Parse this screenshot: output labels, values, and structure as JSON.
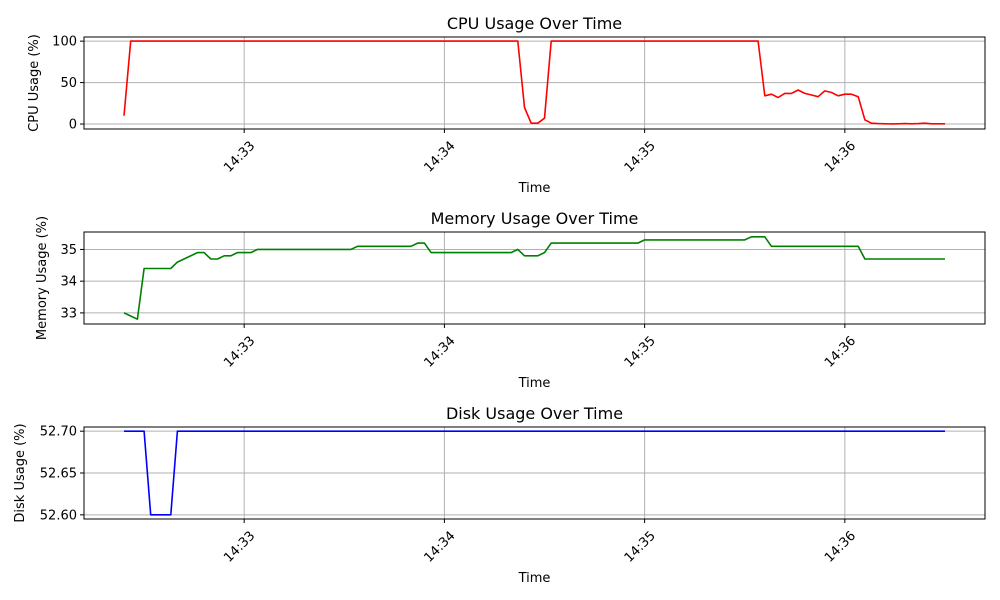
{
  "chart_data": [
    {
      "type": "line",
      "title": "CPU Usage Over Time",
      "xlabel": "Time",
      "ylabel": "CPU Usage (%)",
      "color": "#ff0000",
      "ylim": [
        -6,
        105
      ],
      "yticks": [
        0,
        50,
        100
      ],
      "ytick_labels": [
        "0",
        "50",
        "100"
      ],
      "xlim": [
        "14:32:12",
        "14:36:42"
      ],
      "xticks": [
        "14:33:00",
        "14:34:00",
        "14:35:00",
        "14:36:00"
      ],
      "xtick_labels": [
        "14:33",
        "14:34",
        "14:35",
        "14:36"
      ],
      "grid": true,
      "series": [
        {
          "x": [
            "14:32:24",
            "14:32:26",
            "14:34:22",
            "14:34:24",
            "14:34:26",
            "14:34:28",
            "14:34:30",
            "14:34:32",
            "14:35:34",
            "14:35:36",
            "14:35:38",
            "14:35:40",
            "14:35:42",
            "14:35:44",
            "14:35:46",
            "14:35:48",
            "14:35:50",
            "14:35:52",
            "14:35:54",
            "14:35:56",
            "14:35:58",
            "14:36:00",
            "14:36:02",
            "14:36:04",
            "14:36:06",
            "14:36:08",
            "14:36:10",
            "14:36:12",
            "14:36:14",
            "14:36:16",
            "14:36:18",
            "14:36:20",
            "14:36:22",
            "14:36:24",
            "14:36:26",
            "14:36:28",
            "14:36:30"
          ],
          "y": [
            10,
            100,
            100,
            20,
            1,
            1,
            7,
            100,
            100,
            34,
            36,
            32,
            37,
            37,
            41,
            37,
            35,
            33,
            40,
            38,
            34,
            36,
            36,
            33,
            5,
            1,
            0.5,
            0.3,
            0.2,
            0.3,
            0.5,
            0.3,
            0.5,
            1,
            0.3,
            0.3,
            0.3
          ]
        }
      ]
    },
    {
      "type": "line",
      "title": "Memory Usage Over Time",
      "xlabel": "Time",
      "ylabel": "Memory Usage (%)",
      "color": "#008000",
      "ylim": [
        32.65,
        35.55
      ],
      "yticks": [
        33,
        34,
        35
      ],
      "ytick_labels": [
        "33",
        "34",
        "35"
      ],
      "xlim": [
        "14:32:12",
        "14:36:42"
      ],
      "xticks": [
        "14:33:00",
        "14:34:00",
        "14:35:00",
        "14:36:00"
      ],
      "xtick_labels": [
        "14:33",
        "14:34",
        "14:35",
        "14:36"
      ],
      "grid": true,
      "series": [
        {
          "x": [
            "14:32:24",
            "14:32:28",
            "14:32:30",
            "14:32:38",
            "14:32:40",
            "14:32:46",
            "14:32:48",
            "14:32:50",
            "14:32:52",
            "14:32:54",
            "14:32:56",
            "14:32:58",
            "14:33:02",
            "14:33:04",
            "14:33:32",
            "14:33:34",
            "14:33:50",
            "14:33:52",
            "14:33:54",
            "14:33:56",
            "14:34:20",
            "14:34:22",
            "14:34:24",
            "14:34:28",
            "14:34:30",
            "14:34:32",
            "14:34:58",
            "14:35:00",
            "14:35:30",
            "14:35:32",
            "14:35:36",
            "14:35:38",
            "14:36:04",
            "14:36:06",
            "14:36:30"
          ],
          "y": [
            33.0,
            32.8,
            34.4,
            34.4,
            34.6,
            34.9,
            34.9,
            34.7,
            34.7,
            34.8,
            34.8,
            34.9,
            34.9,
            35.0,
            35.0,
            35.1,
            35.1,
            35.2,
            35.2,
            34.9,
            34.9,
            35.0,
            34.8,
            34.8,
            34.9,
            35.2,
            35.2,
            35.3,
            35.3,
            35.4,
            35.4,
            35.1,
            35.1,
            34.7,
            34.7
          ]
        }
      ]
    },
    {
      "type": "line",
      "title": "Disk Usage Over Time",
      "xlabel": "Time",
      "ylabel": "Disk Usage (%)",
      "color": "#0000ff",
      "ylim": [
        52.595,
        52.705
      ],
      "yticks": [
        52.6,
        52.65,
        52.7
      ],
      "ytick_labels": [
        "52.60",
        "52.65",
        "52.70"
      ],
      "xlim": [
        "14:32:12",
        "14:36:42"
      ],
      "xticks": [
        "14:33:00",
        "14:34:00",
        "14:35:00",
        "14:36:00"
      ],
      "xtick_labels": [
        "14:33",
        "14:34",
        "14:35",
        "14:36"
      ],
      "grid": true,
      "series": [
        {
          "x": [
            "14:32:24",
            "14:32:30",
            "14:32:32",
            "14:32:38",
            "14:32:40",
            "14:36:30"
          ],
          "y": [
            52.7,
            52.7,
            52.6,
            52.6,
            52.7,
            52.7
          ]
        }
      ]
    }
  ]
}
